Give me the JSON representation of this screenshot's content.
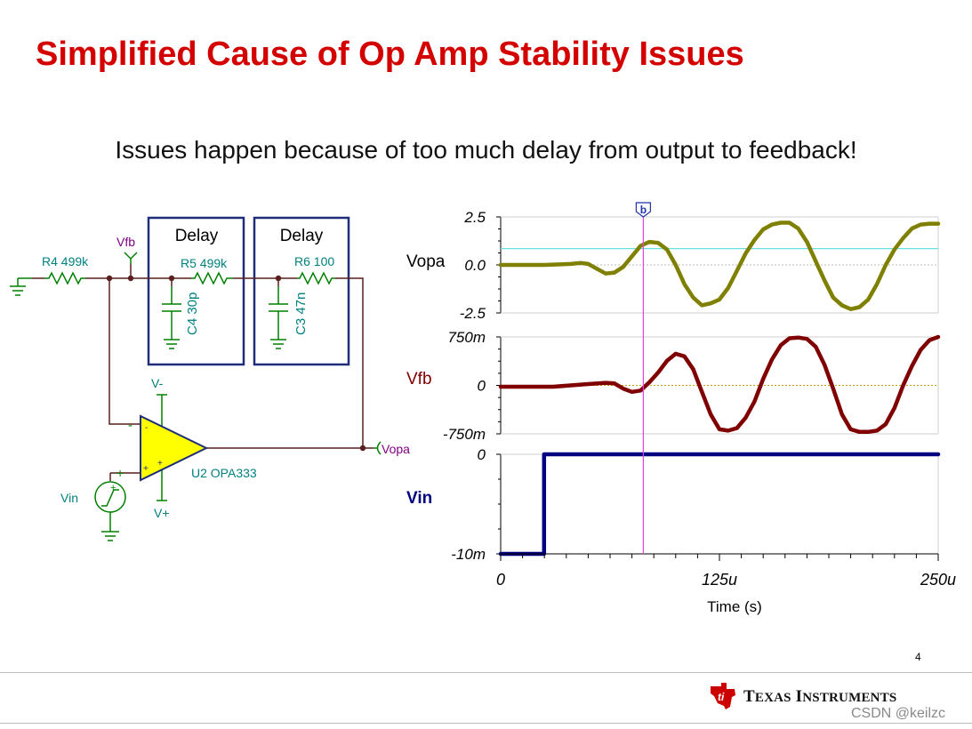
{
  "slide": {
    "title": "Simplified Cause of Op Amp Stability Issues",
    "subtitle": "Issues happen because of too much delay from output to feedback!",
    "page_number": "4"
  },
  "circuit": {
    "delay_box_1": "Delay",
    "delay_box_2": "Delay",
    "r4": "R4 499k",
    "r5": "R5 499k",
    "r6": "R6 100",
    "c4": "C4 30p",
    "c3": "C3 47n",
    "vfb_node": "Vfb",
    "vopa_node": "Vopa",
    "vminus": "V-",
    "vplus": "V+",
    "vin_source": "Vin",
    "opamp": "U2 OPA333",
    "inv_sign": "-",
    "noninv_sign": "+",
    "src_plus": "+",
    "inner_minus": "-",
    "inner_plus": "+",
    "colors": {
      "component": "#008000",
      "wire": "#5a1e1e",
      "label": "#008080",
      "node": "#800080",
      "opamp": "#ffff00",
      "box": "#1f2d7a"
    }
  },
  "chart_data": {
    "type": "line",
    "x_axis": {
      "label": "Time (s)",
      "min": 0,
      "max": 0.00025,
      "ticks": [
        "0",
        "125u",
        "250u"
      ],
      "tick_values": [
        0,
        0.000125,
        0.00025
      ]
    },
    "cursor": {
      "label": "b",
      "x": 8.15e-05
    },
    "panels": [
      {
        "name": "Vopa",
        "color": "#808000",
        "ylim": [
          -2.5,
          2.5
        ],
        "ticks": [
          "2.5",
          "0.0",
          "-2.5"
        ],
        "tick_values": [
          2.5,
          0,
          -2.5
        ],
        "ref_line": 0.85,
        "x": [
          0,
          2.5e-05,
          4e-05,
          4.6e-05,
          5e-05,
          5.5e-05,
          6e-05,
          6.5e-05,
          7e-05,
          7.5e-05,
          8e-05,
          8.5e-05,
          9e-05,
          9.5e-05,
          0.0001,
          0.000105,
          0.00011,
          0.000115,
          0.00012,
          0.000125,
          0.00013,
          0.000135,
          0.00014,
          0.000145,
          0.00015,
          0.000155,
          0.00016,
          0.000165,
          0.00017,
          0.000175,
          0.00018,
          0.000185,
          0.00019,
          0.000195,
          0.0002,
          0.000205,
          0.00021,
          0.000215,
          0.00022,
          0.000225,
          0.00023,
          0.000235,
          0.00024,
          0.000245,
          0.00025
        ],
        "values": [
          0,
          0,
          0.05,
          0.1,
          0.05,
          -0.2,
          -0.45,
          -0.4,
          -0.1,
          0.45,
          1.0,
          1.2,
          1.15,
          0.8,
          0.0,
          -1.0,
          -1.7,
          -2.1,
          -2.0,
          -1.8,
          -1.2,
          -0.3,
          0.6,
          1.3,
          1.85,
          2.1,
          2.2,
          2.2,
          1.9,
          1.2,
          0.2,
          -0.8,
          -1.7,
          -2.1,
          -2.3,
          -2.2,
          -1.8,
          -1.0,
          0.0,
          0.8,
          1.4,
          1.9,
          2.1,
          2.15,
          2.15
        ]
      },
      {
        "name": "Vfb",
        "color": "#800000",
        "ylim": [
          -0.75,
          0.75
        ],
        "ticks": [
          "750m",
          "0",
          "-750m"
        ],
        "tick_values": [
          0.75,
          0,
          -0.75
        ],
        "ref_line": 0,
        "x": [
          0,
          3e-05,
          4e-05,
          5e-05,
          6e-05,
          6.5e-05,
          7e-05,
          7.5e-05,
          8e-05,
          8.5e-05,
          9e-05,
          9.5e-05,
          0.0001,
          0.000105,
          0.00011,
          0.000115,
          0.00012,
          0.000125,
          0.00013,
          0.000135,
          0.00014,
          0.000145,
          0.00015,
          0.000155,
          0.00016,
          0.000165,
          0.00017,
          0.000175,
          0.00018,
          0.000185,
          0.00019,
          0.000195,
          0.0002,
          0.000205,
          0.00021,
          0.000215,
          0.00022,
          0.000225,
          0.00023,
          0.000235,
          0.00024,
          0.000245,
          0.00025
        ],
        "values": [
          -0.02,
          -0.02,
          0.0,
          0.02,
          0.04,
          0.03,
          -0.05,
          -0.1,
          -0.08,
          0.05,
          0.2,
          0.38,
          0.49,
          0.45,
          0.25,
          -0.1,
          -0.45,
          -0.68,
          -0.7,
          -0.66,
          -0.5,
          -0.25,
          0.1,
          0.4,
          0.62,
          0.73,
          0.74,
          0.72,
          0.6,
          0.32,
          -0.05,
          -0.45,
          -0.68,
          -0.72,
          -0.72,
          -0.7,
          -0.6,
          -0.35,
          0.0,
          0.3,
          0.55,
          0.7,
          0.75
        ]
      },
      {
        "name": "Vin",
        "color": "#000080",
        "ylim": [
          -0.01,
          0
        ],
        "ticks": [
          "0",
          "-10m"
        ],
        "tick_values": [
          0,
          -0.01
        ],
        "x": [
          0,
          2.48e-05,
          2.48e-05,
          0.00025
        ],
        "values": [
          -0.01,
          -0.01,
          0,
          0
        ]
      }
    ]
  },
  "branding": {
    "company": "Texas Instruments",
    "company_display": {
      "t": "T",
      "exas": "EXAS",
      "i": "I",
      "nstruments": "NSTRUMENTS"
    },
    "logo_letters": "ti",
    "logo_color": "#cc0000",
    "watermark": "CSDN @keilzc"
  }
}
